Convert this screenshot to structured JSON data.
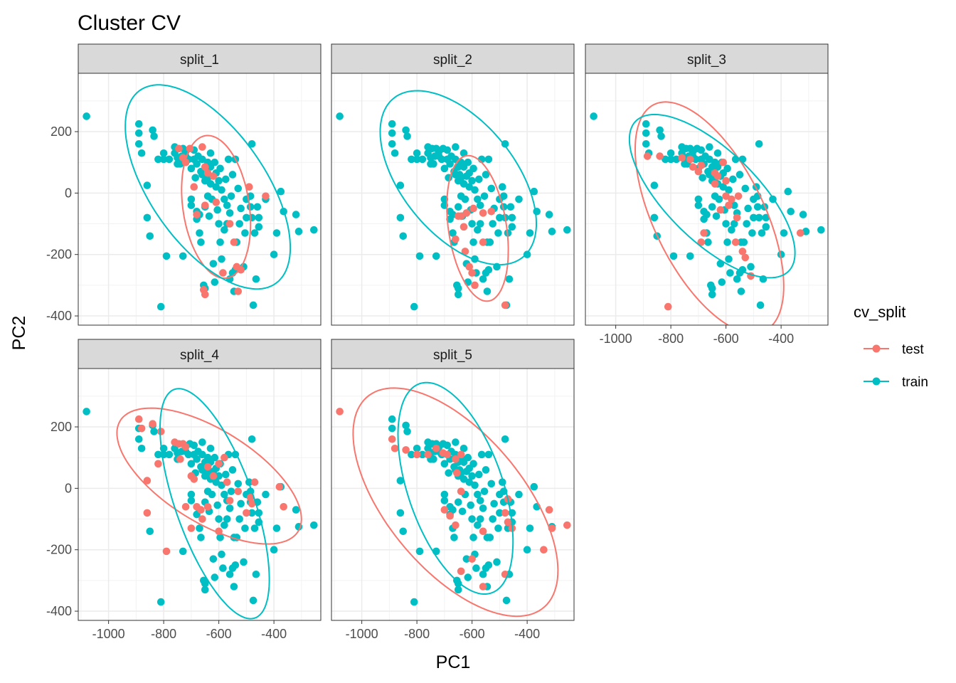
{
  "chart_data": {
    "type": "scatter",
    "title": "Cluster CV",
    "xlabel": "PC1",
    "ylabel": "PC2",
    "xlim": [
      -1110,
      -230
    ],
    "ylim": [
      -430,
      390
    ],
    "xticks": [
      -1000,
      -800,
      -600,
      -400
    ],
    "xtick_labels": [
      "-1000",
      "-800",
      "-600",
      "-400"
    ],
    "yticks": [
      -400,
      -200,
      0,
      200
    ],
    "ytick_labels": [
      "-400",
      "-200",
      "0",
      "200"
    ],
    "grid": true,
    "legend": {
      "title": "cv_split",
      "placement": "right",
      "entries": [
        "test",
        "train"
      ]
    },
    "colors": {
      "test": "#F8766D",
      "train": "#00BFC4"
    },
    "base_points": [
      [
        -1080,
        250
      ],
      [
        -890,
        225
      ],
      [
        -890,
        160
      ],
      [
        -890,
        195
      ],
      [
        -880,
        130
      ],
      [
        -860,
        25
      ],
      [
        -860,
        -80
      ],
      [
        -850,
        -140
      ],
      [
        -840,
        205
      ],
      [
        -835,
        185
      ],
      [
        -820,
        110
      ],
      [
        -810,
        -370
      ],
      [
        -800,
        130
      ],
      [
        -800,
        110
      ],
      [
        -790,
        -205
      ],
      [
        -780,
        110
      ],
      [
        -760,
        150
      ],
      [
        -760,
        130
      ],
      [
        -750,
        115
      ],
      [
        -750,
        95
      ],
      [
        -745,
        145
      ],
      [
        -740,
        95
      ],
      [
        -735,
        120
      ],
      [
        -730,
        145
      ],
      [
        -730,
        -205
      ],
      [
        -720,
        135
      ],
      [
        -720,
        120
      ],
      [
        -710,
        110
      ],
      [
        -705,
        145
      ],
      [
        -700,
        80
      ],
      [
        -700,
        -20
      ],
      [
        -700,
        -40
      ],
      [
        -690,
        140
      ],
      [
        -690,
        110
      ],
      [
        -685,
        50
      ],
      [
        -680,
        95
      ],
      [
        -680,
        -60
      ],
      [
        -680,
        -85
      ],
      [
        -675,
        120
      ],
      [
        -670,
        -130
      ],
      [
        -670,
        -70
      ],
      [
        -665,
        -160
      ],
      [
        -665,
        70
      ],
      [
        -660,
        150
      ],
      [
        -660,
        110
      ],
      [
        -660,
        60
      ],
      [
        -655,
        -300
      ],
      [
        -650,
        40
      ],
      [
        -650,
        85
      ],
      [
        -650,
        -45
      ],
      [
        -650,
        -310
      ],
      [
        -650,
        -330
      ],
      [
        -645,
        60
      ],
      [
        -640,
        100
      ],
      [
        -640,
        50
      ],
      [
        -640,
        -10
      ],
      [
        -635,
        -75
      ],
      [
        -630,
        130
      ],
      [
        -630,
        85
      ],
      [
        -630,
        30
      ],
      [
        -625,
        -20
      ],
      [
        -620,
        -230
      ],
      [
        -620,
        55
      ],
      [
        -615,
        100
      ],
      [
        -615,
        -290
      ],
      [
        -610,
        65
      ],
      [
        -610,
        20
      ],
      [
        -605,
        -55
      ],
      [
        -600,
        -100
      ],
      [
        -600,
        40
      ],
      [
        -595,
        80
      ],
      [
        -595,
        -160
      ],
      [
        -590,
        10
      ],
      [
        -590,
        -215
      ],
      [
        -585,
        -260
      ],
      [
        -580,
        -120
      ],
      [
        -580,
        -20
      ],
      [
        -575,
        45
      ],
      [
        -570,
        -40
      ],
      [
        -570,
        -100
      ],
      [
        -565,
        110
      ],
      [
        -560,
        -65
      ],
      [
        -560,
        -280
      ],
      [
        -555,
        -10
      ],
      [
        -550,
        60
      ],
      [
        -550,
        -260
      ],
      [
        -545,
        -320
      ],
      [
        -545,
        -160
      ],
      [
        -540,
        -250
      ],
      [
        -540,
        110
      ],
      [
        -535,
        -160
      ],
      [
        -530,
        15
      ],
      [
        -525,
        -100
      ],
      [
        -520,
        -50
      ],
      [
        -510,
        -240
      ],
      [
        -505,
        -130
      ],
      [
        -500,
        -20
      ],
      [
        -500,
        -80
      ],
      [
        -490,
        20
      ],
      [
        -485,
        -10
      ],
      [
        -485,
        -45
      ],
      [
        -480,
        160
      ],
      [
        -480,
        -80
      ],
      [
        -475,
        -365
      ],
      [
        -470,
        -130
      ],
      [
        -465,
        -280
      ],
      [
        -460,
        -45
      ],
      [
        -455,
        -80
      ],
      [
        -455,
        -110
      ],
      [
        -430,
        -20
      ],
      [
        -400,
        -200
      ],
      [
        -390,
        -130
      ],
      [
        -375,
        5
      ],
      [
        -365,
        -60
      ],
      [
        -320,
        -70
      ],
      [
        -310,
        -125
      ],
      [
        -255,
        -120
      ]
    ],
    "panels": [
      {
        "label": "split_1",
        "test_points": [
          [
            -745,
            145
          ],
          [
            -705,
            145
          ],
          [
            -730,
            115
          ],
          [
            -720,
            100
          ],
          [
            -660,
            150
          ],
          [
            -650,
            85
          ],
          [
            -640,
            65
          ],
          [
            -620,
            55
          ],
          [
            -690,
            20
          ],
          [
            -650,
            -40
          ],
          [
            -680,
            -70
          ],
          [
            -610,
            -30
          ],
          [
            -560,
            -100
          ],
          [
            -545,
            -160
          ],
          [
            -535,
            -240
          ],
          [
            -520,
            -250
          ],
          [
            -530,
            -320
          ],
          [
            -655,
            -315
          ],
          [
            -650,
            -330
          ],
          [
            -585,
            -260
          ],
          [
            -490,
            20
          ],
          [
            -430,
            -10
          ]
        ],
        "ellipses": {
          "test": {
            "cx": -610,
            "cy": -45,
            "a": 235,
            "b": 120,
            "angle": -80
          },
          "train": {
            "cx": -640,
            "cy": 20,
            "a": 400,
            "b": 200,
            "angle": -50
          }
        }
      },
      {
        "label": "split_2",
        "test_points": [
          [
            -650,
            -75
          ],
          [
            -640,
            -75
          ],
          [
            -620,
            -65
          ],
          [
            -595,
            -50
          ],
          [
            -560,
            -65
          ],
          [
            -530,
            -60
          ],
          [
            -630,
            -110
          ],
          [
            -660,
            -150
          ],
          [
            -560,
            -160
          ],
          [
            -625,
            -190
          ],
          [
            -480,
            -365
          ],
          [
            -600,
            -260
          ],
          [
            -610,
            -240
          ],
          [
            -590,
            -300
          ]
        ],
        "ellipses": {
          "test": {
            "cx": -580,
            "cy": -115,
            "a": 240,
            "b": 105,
            "angle": -80
          },
          "train": {
            "cx": -650,
            "cy": 50,
            "a": 350,
            "b": 195,
            "angle": -45
          }
        }
      },
      {
        "label": "split_3",
        "test_points": [
          [
            -885,
            120
          ],
          [
            -840,
            120
          ],
          [
            -760,
            115
          ],
          [
            -730,
            110
          ],
          [
            -720,
            85
          ],
          [
            -700,
            70
          ],
          [
            -690,
            90
          ],
          [
            -640,
            65
          ],
          [
            -630,
            55
          ],
          [
            -600,
            40
          ],
          [
            -610,
            100
          ],
          [
            -640,
            30
          ],
          [
            -600,
            -10
          ],
          [
            -580,
            -20
          ],
          [
            -590,
            -40
          ],
          [
            -620,
            -55
          ],
          [
            -555,
            -10
          ],
          [
            -560,
            -80
          ],
          [
            -540,
            -190
          ],
          [
            -530,
            -210
          ],
          [
            -510,
            -270
          ],
          [
            -330,
            -130
          ],
          [
            -690,
            -160
          ],
          [
            -680,
            -130
          ],
          [
            -810,
            -370
          ],
          [
            -565,
            -160
          ]
        ],
        "ellipses": {
          "test": {
            "cx": -660,
            "cy": -80,
            "a": 420,
            "b": 195,
            "angle": -60
          },
          "train": {
            "cx": -650,
            "cy": -10,
            "a": 370,
            "b": 155,
            "angle": -40
          }
        }
      },
      {
        "label": "split_4",
        "test_points": [
          [
            -890,
            225
          ],
          [
            -880,
            195
          ],
          [
            -840,
            210
          ],
          [
            -810,
            185
          ],
          [
            -860,
            25
          ],
          [
            -860,
            -80
          ],
          [
            -820,
            80
          ],
          [
            -790,
            -205
          ],
          [
            -760,
            150
          ],
          [
            -745,
            145
          ],
          [
            -730,
            145
          ],
          [
            -720,
            135
          ],
          [
            -740,
            95
          ],
          [
            -700,
            40
          ],
          [
            -720,
            -60
          ],
          [
            -690,
            30
          ],
          [
            -680,
            -60
          ],
          [
            -660,
            -100
          ],
          [
            -665,
            -70
          ],
          [
            -640,
            70
          ],
          [
            -620,
            40
          ],
          [
            -600,
            80
          ],
          [
            -580,
            100
          ],
          [
            -570,
            20
          ],
          [
            -560,
            -40
          ],
          [
            -530,
            -10
          ],
          [
            -500,
            -80
          ],
          [
            -480,
            -50
          ],
          [
            -485,
            -30
          ],
          [
            -470,
            20
          ],
          [
            -380,
            5
          ],
          [
            -365,
            -60
          ],
          [
            -700,
            -130
          ],
          [
            -640,
            -60
          ],
          [
            -600,
            -140
          ]
        ],
        "ellipses": {
          "test": {
            "cx": -635,
            "cy": 40,
            "a": 370,
            "b": 155,
            "angle": -28
          },
          "train": {
            "cx": -615,
            "cy": -50,
            "a": 400,
            "b": 140,
            "angle": -68
          }
        }
      },
      {
        "label": "split_5",
        "test_points": [
          [
            -1080,
            250
          ],
          [
            -890,
            160
          ],
          [
            -880,
            130
          ],
          [
            -840,
            125
          ],
          [
            -800,
            110
          ],
          [
            -760,
            110
          ],
          [
            -730,
            130
          ],
          [
            -705,
            115
          ],
          [
            -690,
            110
          ],
          [
            -660,
            95
          ],
          [
            -640,
            110
          ],
          [
            -655,
            50
          ],
          [
            -640,
            -10
          ],
          [
            -680,
            -90
          ],
          [
            -660,
            -120
          ],
          [
            -700,
            -70
          ],
          [
            -640,
            -270
          ],
          [
            -600,
            -230
          ],
          [
            -560,
            -320
          ],
          [
            -560,
            -140
          ],
          [
            -470,
            -35
          ],
          [
            -480,
            -80
          ],
          [
            -470,
            -110
          ],
          [
            -455,
            -130
          ],
          [
            -320,
            -70
          ],
          [
            -255,
            -120
          ],
          [
            -310,
            -130
          ],
          [
            -340,
            -200
          ],
          [
            -480,
            -280
          ]
        ],
        "ellipses": {
          "test": {
            "cx": -660,
            "cy": -45,
            "a": 470,
            "b": 235,
            "angle": -45
          },
          "train": {
            "cx": -660,
            "cy": 0,
            "a": 365,
            "b": 170,
            "angle": -68
          }
        }
      }
    ]
  }
}
